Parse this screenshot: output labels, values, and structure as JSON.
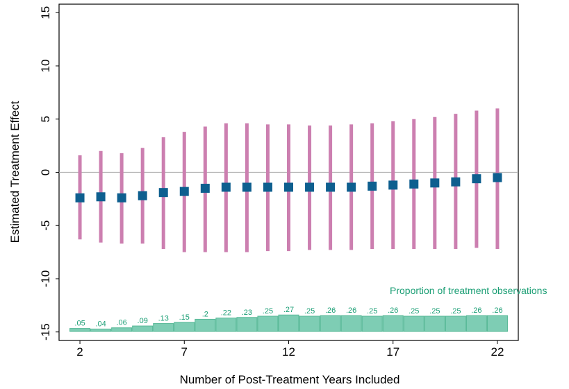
{
  "chart_data": {
    "type": "scatter",
    "title": "",
    "xlabel": "Number of Post-Treatment Years Included",
    "ylabel": "Estimated Treatment Effect",
    "xlim": [
      1,
      23
    ],
    "ylim": [
      -15.8,
      15.8
    ],
    "xticks": [
      2,
      7,
      12,
      17,
      22
    ],
    "yticks": [
      -15,
      -10,
      -5,
      0,
      5,
      10,
      15
    ],
    "x": [
      2,
      3,
      4,
      5,
      6,
      7,
      8,
      9,
      10,
      11,
      12,
      13,
      14,
      15,
      16,
      17,
      18,
      19,
      20,
      21,
      22
    ],
    "series": [
      {
        "marker": "square",
        "values": [
          -2.4,
          -2.3,
          -2.4,
          -2.2,
          -1.9,
          -1.8,
          -1.5,
          -1.4,
          -1.4,
          -1.4,
          -1.4,
          -1.4,
          -1.4,
          -1.4,
          -1.3,
          -1.2,
          -1.1,
          -1.0,
          -0.9,
          -0.6,
          -0.5
        ],
        "ci_lower": [
          -6.3,
          -6.6,
          -6.7,
          -6.7,
          -7.2,
          -7.5,
          -7.5,
          -7.5,
          -7.5,
          -7.4,
          -7.4,
          -7.3,
          -7.3,
          -7.3,
          -7.2,
          -7.2,
          -7.2,
          -7.2,
          -7.2,
          -7.1,
          -7.2
        ],
        "ci_upper": [
          1.6,
          2.0,
          1.8,
          2.3,
          3.3,
          3.8,
          4.3,
          4.6,
          4.6,
          4.5,
          4.5,
          4.4,
          4.4,
          4.5,
          4.6,
          4.8,
          5.0,
          5.2,
          5.5,
          5.8,
          6.0
        ]
      }
    ],
    "reference_line": 0,
    "proportion_bars": {
      "annotation": "Proportion of treatment observations",
      "labels": [
        ".05",
        ".04",
        ".06",
        ".09",
        ".13",
        ".15",
        ".2",
        ".22",
        ".23",
        ".25",
        ".27",
        ".25",
        ".26",
        ".26",
        ".25",
        ".26",
        ".25",
        ".25",
        ".25",
        ".26",
        ".26"
      ],
      "values": [
        0.05,
        0.04,
        0.06,
        0.09,
        0.13,
        0.15,
        0.2,
        0.22,
        0.23,
        0.25,
        0.27,
        0.25,
        0.26,
        0.26,
        0.25,
        0.26,
        0.25,
        0.25,
        0.25,
        0.26,
        0.26
      ]
    },
    "colors": {
      "point": "#0e5f8f",
      "ci": "#cc7fb0",
      "bar_fill": "#7ecdb4",
      "bar_stroke": "#56b896",
      "bar_text": "#1a9e74",
      "zero_line": "#b0b0b0"
    },
    "grid": false,
    "legend": "none"
  }
}
